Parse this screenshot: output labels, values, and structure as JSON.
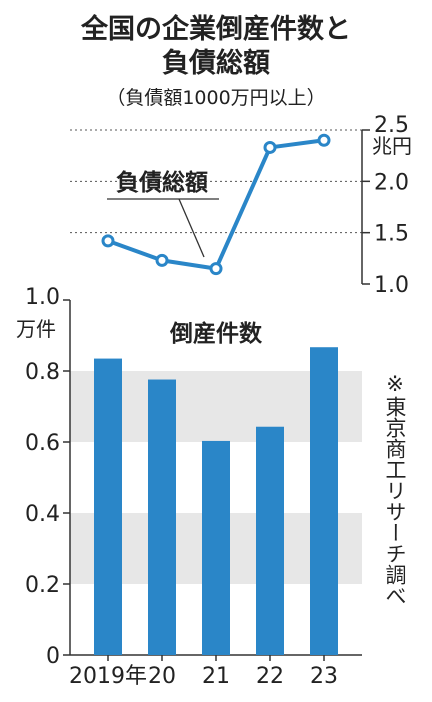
{
  "title_line1": "全国の企業倒産件数と",
  "title_line2": "負債総額",
  "subtitle": "（負債額1000万円以上）",
  "source_note": "※東京商工リサーチ調べ",
  "colors": {
    "line": "#2a86c8",
    "bar": "#2a86c8",
    "band": "#e7e7e7",
    "text": "#222222"
  },
  "chart_data": [
    {
      "type": "line",
      "categories": [
        "2019年",
        "20",
        "21",
        "22",
        "23"
      ],
      "series": [
        {
          "name": "負債総額",
          "values": [
            1.42,
            1.23,
            1.15,
            2.33,
            2.4
          ]
        }
      ],
      "ylim": [
        1.0,
        2.5
      ],
      "yticks": [
        "1.0",
        "1.5",
        "2.0",
        "2.5"
      ],
      "unit_label": "兆円",
      "grid": true,
      "marker": "circle"
    },
    {
      "type": "bar",
      "categories": [
        "2019年",
        "20",
        "21",
        "22",
        "23"
      ],
      "series": [
        {
          "name": "倒産件数",
          "values": [
            0.835,
            0.776,
            0.603,
            0.643,
            0.867
          ]
        }
      ],
      "ylim": [
        0,
        1.0
      ],
      "yticks": [
        "0",
        "0.2",
        "0.4",
        "0.6",
        "0.8",
        "1.0"
      ],
      "unit_label": "万件",
      "alternating_bands": true
    }
  ]
}
